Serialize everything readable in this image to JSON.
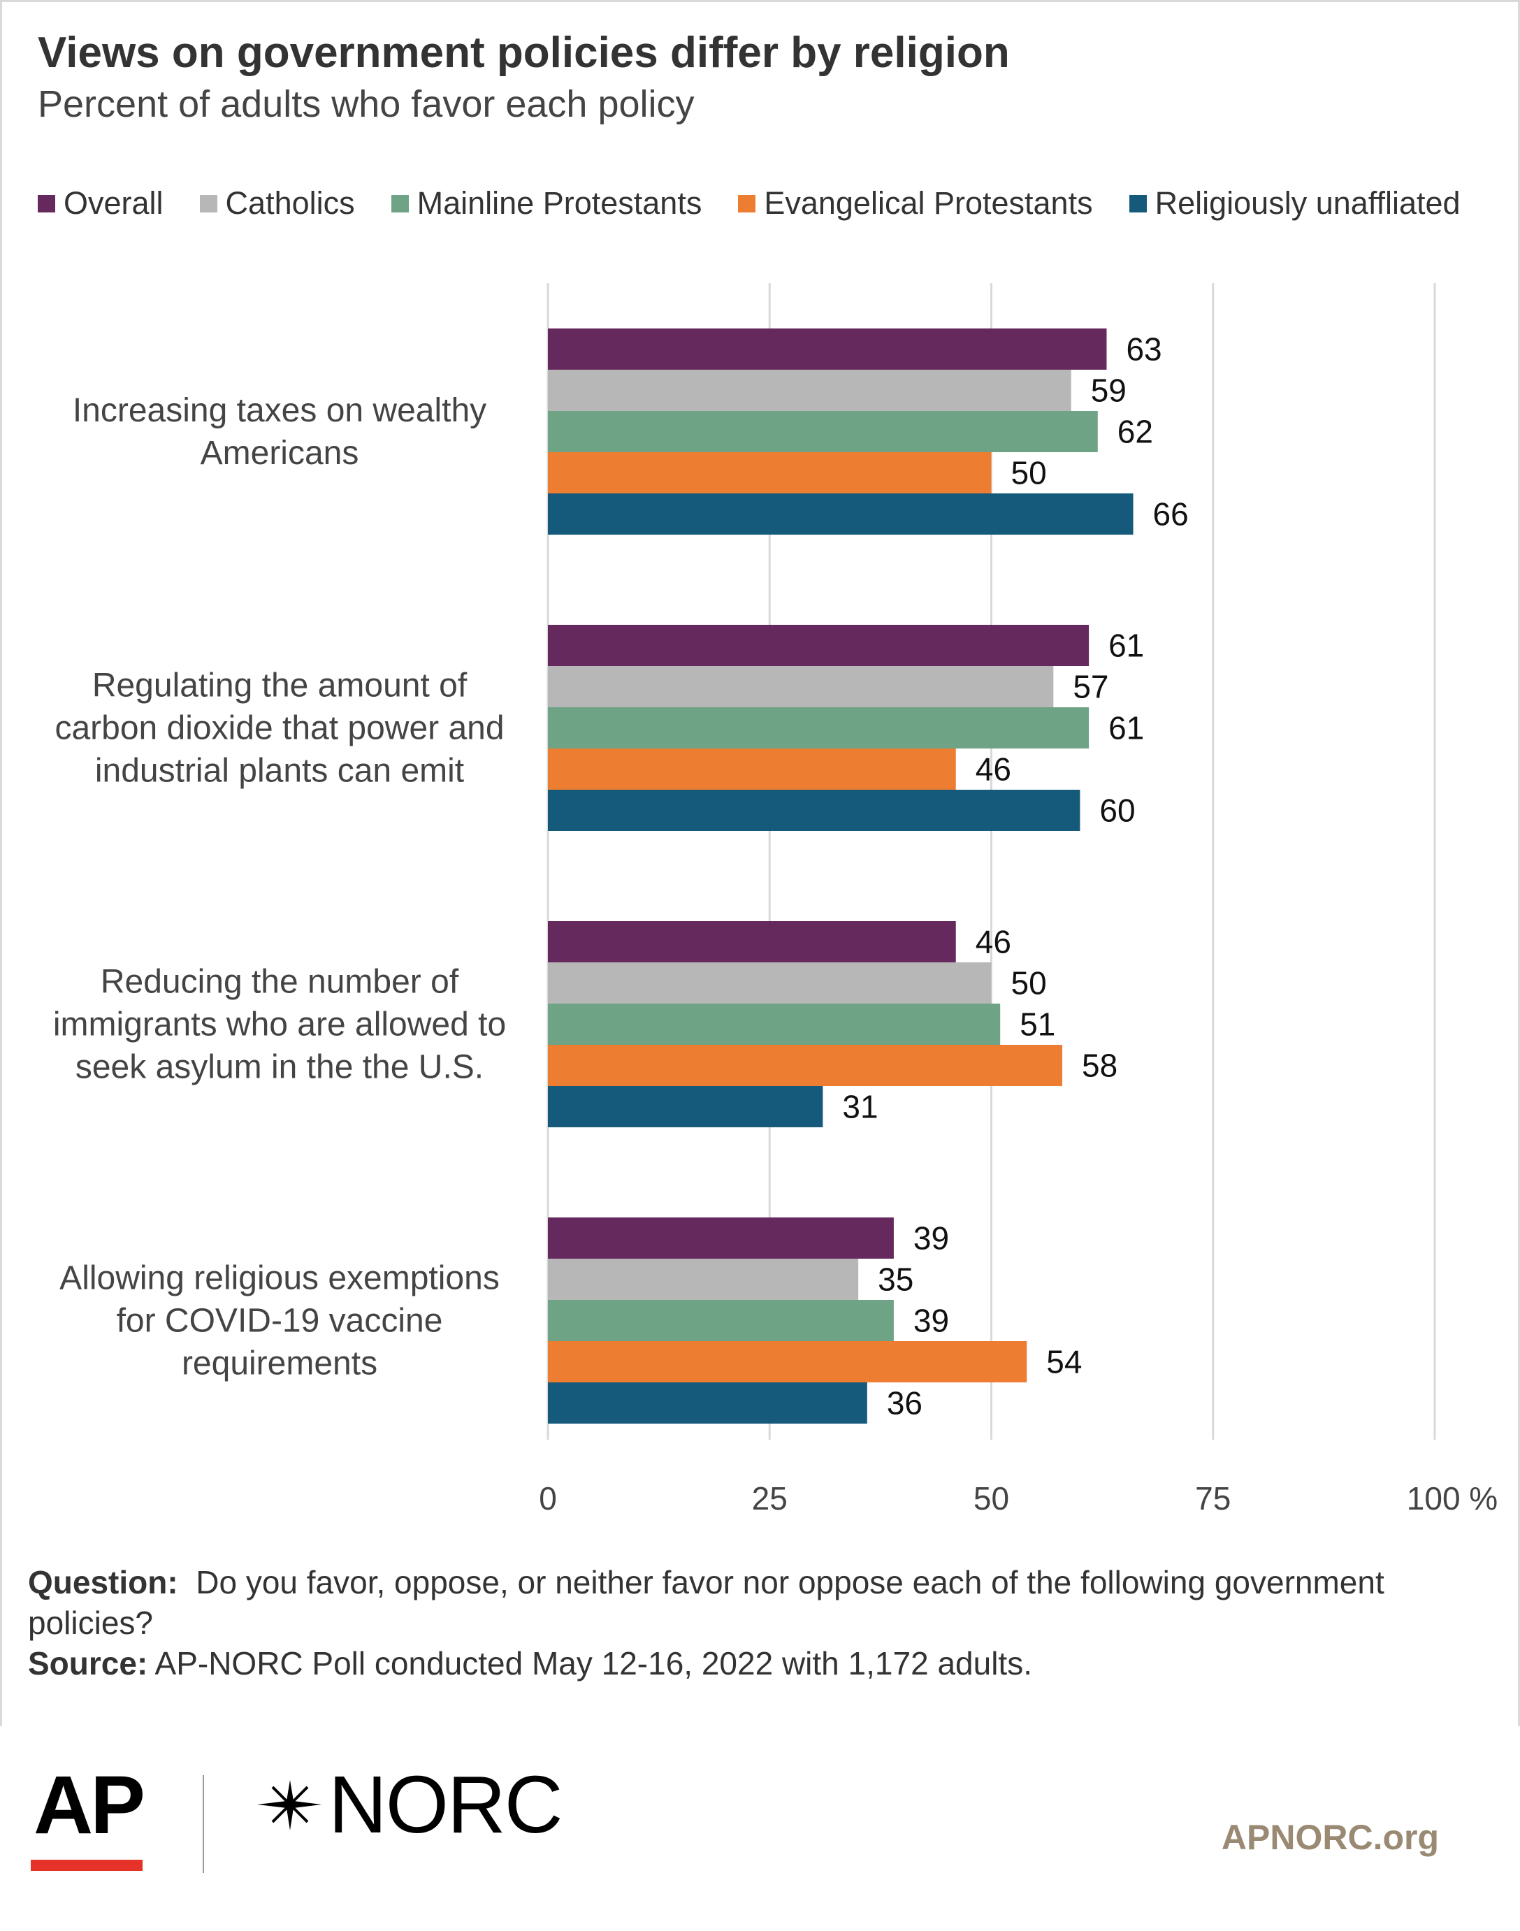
{
  "title": "Views on government policies differ by religion",
  "subtitle": "Percent of adults who favor each policy",
  "legend": [
    {
      "label": "Overall",
      "color": "#66295e"
    },
    {
      "label": "Catholics",
      "color": "#b7b7b7"
    },
    {
      "label": "Mainline Protestants",
      "color": "#6ea386"
    },
    {
      "label": "Evangelical Protestants",
      "color": "#ec7d31"
    },
    {
      "label": "Religiously unaffliated",
      "color": "#155a7a"
    }
  ],
  "chart_data": {
    "type": "bar",
    "orientation": "horizontal",
    "categories": [
      [
        "Increasing taxes on wealthy",
        "Americans"
      ],
      [
        "Regulating the amount of",
        "carbon dioxide that power and",
        "industrial plants can emit"
      ],
      [
        "Reducing the number of",
        "immigrants who are allowed to",
        "seek asylum in the the U.S."
      ],
      [
        "Allowing religious exemptions",
        "for COVID-19 vaccine",
        "requirements"
      ]
    ],
    "series": [
      {
        "name": "Overall",
        "values": [
          63,
          61,
          46,
          39
        ]
      },
      {
        "name": "Catholics",
        "values": [
          59,
          57,
          50,
          35
        ]
      },
      {
        "name": "Mainline Protestants",
        "values": [
          62,
          61,
          51,
          39
        ]
      },
      {
        "name": "Evangelical Protestants",
        "values": [
          50,
          46,
          58,
          54
        ]
      },
      {
        "name": "Religiously unaffliated",
        "values": [
          66,
          60,
          31,
          36
        ]
      }
    ],
    "xlim": [
      0,
      100
    ],
    "ticks": [
      "0",
      "25",
      "50",
      "75",
      "100 %"
    ],
    "grid": true,
    "legend_position": "top"
  },
  "notes": {
    "question_label": "Question:",
    "question_text": "Do you favor, oppose, or neither favor nor oppose each of the following government policies?",
    "source_label": "Source:",
    "source_text": "AP-NORC Poll conducted May 12-16, 2022 with 1,172 adults."
  },
  "footer": {
    "ap_logo": "AP",
    "norc_logo": "NORC",
    "site": "APNORC.org"
  }
}
